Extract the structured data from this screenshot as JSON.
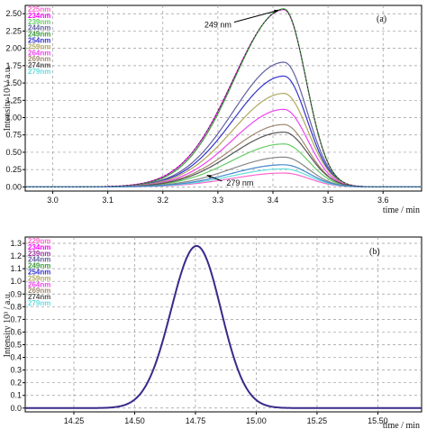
{
  "chart_data": [
    {
      "type": "line",
      "panel_label": "(a)",
      "xlabel": "time / min",
      "ylabel": "Intensity 10³ / a.u.",
      "xlim": [
        2.95,
        3.67
      ],
      "ylim": [
        -0.06,
        2.62
      ],
      "x_ticks": [
        3.0,
        3.1,
        3.2,
        3.3,
        3.4,
        3.5,
        3.6
      ],
      "x_tick_labels": [
        "3.0",
        "3.1",
        "3.2",
        "3.3",
        "3.4",
        "3.5",
        "3.6"
      ],
      "y_ticks": [
        0.0,
        0.25,
        0.5,
        0.75,
        1.0,
        1.25,
        1.5,
        1.75,
        2.0,
        2.25,
        2.5
      ],
      "y_tick_labels": [
        "0.00",
        "0.25",
        "0.50",
        "0.75",
        "1.00",
        "1.25",
        "1.50",
        "1.75",
        "2.00",
        "2.25",
        "2.50"
      ],
      "grid": true,
      "legend_position": "top-left",
      "peak_center": 3.42,
      "series": [
        {
          "name": "225nm",
          "peak": 0.2,
          "sigma_left": 0.095,
          "sigma_right": 0.045,
          "color": "#ff66cc"
        },
        {
          "name": "234nm",
          "peak": 2.56,
          "sigma_left": 0.092,
          "sigma_right": 0.04,
          "color": "#ff00ff"
        },
        {
          "name": "239nm",
          "peak": 0.62,
          "sigma_left": 0.095,
          "sigma_right": 0.044,
          "color": "#66cc66"
        },
        {
          "name": "244nm",
          "peak": 1.8,
          "sigma_left": 0.092,
          "sigma_right": 0.042,
          "color": "#6060a0"
        },
        {
          "name": "249nm",
          "peak": 2.57,
          "sigma_left": 0.09,
          "sigma_right": 0.04,
          "color": "#3a9a3a"
        },
        {
          "name": "254nm",
          "peak": 1.6,
          "sigma_left": 0.092,
          "sigma_right": 0.042,
          "color": "#3333cc"
        },
        {
          "name": "259nm",
          "peak": 1.35,
          "sigma_left": 0.093,
          "sigma_right": 0.043,
          "color": "#b0a860"
        },
        {
          "name": "264nm",
          "peak": 1.12,
          "sigma_left": 0.093,
          "sigma_right": 0.043,
          "color": "#ee44ee"
        },
        {
          "name": "269nm",
          "peak": 0.9,
          "sigma_left": 0.094,
          "sigma_right": 0.043,
          "color": "#a08870"
        },
        {
          "name": "274nm",
          "peak": 0.79,
          "sigma_left": 0.094,
          "sigma_right": 0.044,
          "color": "#555555"
        },
        {
          "name": "279nm",
          "peak": 0.26,
          "sigma_left": 0.095,
          "sigma_right": 0.045,
          "color": "#66dddd"
        },
        {
          "name": "",
          "peak": 0.43,
          "sigma_left": 0.095,
          "sigma_right": 0.044,
          "color": "#888888"
        },
        {
          "name": "",
          "peak": 0.32,
          "sigma_left": 0.095,
          "sigma_right": 0.045,
          "color": "#4488cc"
        }
      ],
      "annotations": [
        {
          "text": "249 nm",
          "x": 3.3,
          "y": 2.3
        },
        {
          "text": "279 nm",
          "x": 3.34,
          "y": 0.02
        }
      ]
    },
    {
      "type": "line",
      "panel_label": "(b)",
      "xlabel": "time / min",
      "ylabel": "Intensity 10³ / a.u.",
      "xlim": [
        14.05,
        15.68
      ],
      "ylim": [
        -0.03,
        1.35
      ],
      "x_ticks": [
        14.25,
        14.5,
        14.75,
        15.0,
        15.25,
        15.5
      ],
      "x_tick_labels": [
        "14.25",
        "14.50",
        "14.75",
        "15.00",
        "15.25",
        "15.50"
      ],
      "y_ticks": [
        0.0,
        0.1,
        0.2,
        0.3,
        0.4,
        0.5,
        0.6,
        0.7,
        0.8,
        0.9,
        1.0,
        1.1,
        1.2,
        1.3
      ],
      "y_tick_labels": [
        "0.0",
        "0.1",
        "0.2",
        "0.3",
        "0.4",
        "0.5",
        "0.6",
        "0.7",
        "0.8",
        "0.9",
        "1.0",
        "1.1",
        "1.2",
        "1.3"
      ],
      "grid": true,
      "legend_position": "top-left",
      "peak_center": 14.755,
      "series": [
        {
          "name": "229nm",
          "peak": 1.28,
          "sigma_left": 0.105,
          "sigma_right": 0.1,
          "color": "#ff66cc"
        },
        {
          "name": "234nm",
          "peak": 1.28,
          "sigma_left": 0.105,
          "sigma_right": 0.1,
          "color": "#ff00ff"
        },
        {
          "name": "239nm",
          "peak": 1.28,
          "sigma_left": 0.105,
          "sigma_right": 0.1,
          "color": "#993399"
        },
        {
          "name": "244nm",
          "peak": 1.28,
          "sigma_left": 0.105,
          "sigma_right": 0.1,
          "color": "#6060a0"
        },
        {
          "name": "249nm",
          "peak": 1.28,
          "sigma_left": 0.105,
          "sigma_right": 0.1,
          "color": "#3a9a3a"
        },
        {
          "name": "254nm",
          "peak": 1.28,
          "sigma_left": 0.105,
          "sigma_right": 0.1,
          "color": "#3333cc"
        },
        {
          "name": "259nm",
          "peak": 1.28,
          "sigma_left": 0.105,
          "sigma_right": 0.1,
          "color": "#b0a860"
        },
        {
          "name": "264nm",
          "peak": 1.28,
          "sigma_left": 0.105,
          "sigma_right": 0.1,
          "color": "#ee44ee"
        },
        {
          "name": "269nm",
          "peak": 1.28,
          "sigma_left": 0.105,
          "sigma_right": 0.1,
          "color": "#a08870"
        },
        {
          "name": "274nm",
          "peak": 1.28,
          "sigma_left": 0.105,
          "sigma_right": 0.1,
          "color": "#555555"
        },
        {
          "name": "279nm",
          "peak": 1.28,
          "sigma_left": 0.105,
          "sigma_right": 0.1,
          "color": "#66dddd"
        }
      ],
      "annotations": []
    }
  ]
}
